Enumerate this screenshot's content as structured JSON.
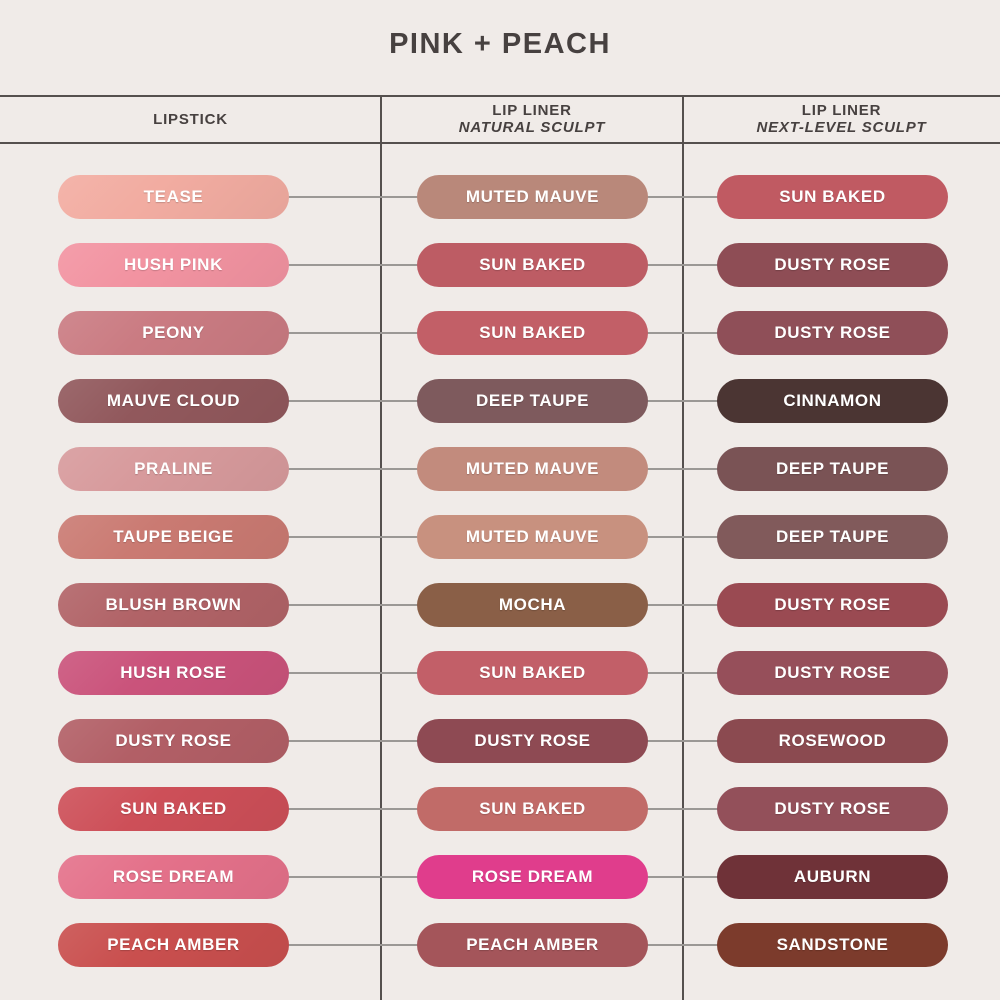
{
  "title": "PINK + PEACH",
  "colors": {
    "background": "#f0ebe8",
    "grid_line": "#55504e",
    "connector_line": "#9b9895",
    "title_text": "#474140",
    "header_text": "#474140",
    "swatch_text": "#ffffff"
  },
  "columns": [
    {
      "line1": "LIPSTICK",
      "line2": ""
    },
    {
      "line1": "LIP LINER",
      "line2": "NATURAL SCULPT"
    },
    {
      "line1": "LIP LINER",
      "line2": "NEXT-LEVEL SCULPT"
    }
  ],
  "rows": [
    {
      "lipstick": {
        "name": "TEASE",
        "color": "#f2aca1"
      },
      "natural_sculpt": {
        "name": "MUTED MAUVE",
        "color": "#b9887a"
      },
      "next_level_sculpt": {
        "name": "SUN BAKED",
        "color": "#c05a62"
      }
    },
    {
      "lipstick": {
        "name": "HUSH PINK",
        "color": "#f293a1"
      },
      "natural_sculpt": {
        "name": "SUN BAKED",
        "color": "#bd5c64"
      },
      "next_level_sculpt": {
        "name": "DUSTY ROSE",
        "color": "#8e4d55"
      }
    },
    {
      "lipstick": {
        "name": "PEONY",
        "color": "#ca7b82"
      },
      "natural_sculpt": {
        "name": "SUN BAKED",
        "color": "#c25f67"
      },
      "next_level_sculpt": {
        "name": "DUSTY ROSE",
        "color": "#8f4f58"
      }
    },
    {
      "lipstick": {
        "name": "MAUVE CLOUD",
        "color": "#91585c"
      },
      "natural_sculpt": {
        "name": "DEEP TAUPE",
        "color": "#7e5a5d"
      },
      "next_level_sculpt": {
        "name": "CINNAMON",
        "color": "#4b3533"
      }
    },
    {
      "lipstick": {
        "name": "PRALINE",
        "color": "#d79a9c"
      },
      "natural_sculpt": {
        "name": "MUTED MAUVE",
        "color": "#c28b7d"
      },
      "next_level_sculpt": {
        "name": "DEEP TAUPE",
        "color": "#7a5355"
      }
    },
    {
      "lipstick": {
        "name": "TAUPE BEIGE",
        "color": "#ca7a72"
      },
      "natural_sculpt": {
        "name": "MUTED MAUVE",
        "color": "#c8917f"
      },
      "next_level_sculpt": {
        "name": "DEEP TAUPE",
        "color": "#815a5b"
      }
    },
    {
      "lipstick": {
        "name": "BLUSH BROWN",
        "color": "#b16367"
      },
      "natural_sculpt": {
        "name": "MOCHA",
        "color": "#8a5f47"
      },
      "next_level_sculpt": {
        "name": "DUSTY ROSE",
        "color": "#9a4a52"
      }
    },
    {
      "lipstick": {
        "name": "HUSH ROSE",
        "color": "#ca537b"
      },
      "natural_sculpt": {
        "name": "SUN BAKED",
        "color": "#c25f68"
      },
      "next_level_sculpt": {
        "name": "DUSTY ROSE",
        "color": "#964f5a"
      }
    },
    {
      "lipstick": {
        "name": "DUSTY ROSE",
        "color": "#b25f66"
      },
      "natural_sculpt": {
        "name": "DUSTY ROSE",
        "color": "#8e4a53"
      },
      "next_level_sculpt": {
        "name": "ROSEWOOD",
        "color": "#8b4a50"
      }
    },
    {
      "lipstick": {
        "name": "SUN BAKED",
        "color": "#cd4f58"
      },
      "natural_sculpt": {
        "name": "SUN BAKED",
        "color": "#c16b68"
      },
      "next_level_sculpt": {
        "name": "DUSTY ROSE",
        "color": "#93505a"
      }
    },
    {
      "lipstick": {
        "name": "ROSE DREAM",
        "color": "#e4718a"
      },
      "natural_sculpt": {
        "name": "ROSE DREAM",
        "color": "#e03d8c"
      },
      "next_level_sculpt": {
        "name": "AUBURN",
        "color": "#6f3238"
      }
    },
    {
      "lipstick": {
        "name": "PEACH AMBER",
        "color": "#c94f4e"
      },
      "natural_sculpt": {
        "name": "PEACH AMBER",
        "color": "#a4555a"
      },
      "next_level_sculpt": {
        "name": "SANDSTONE",
        "color": "#7c3b2c"
      }
    }
  ],
  "layout_note": "shade matching chart: lipstick to lip liner pairings"
}
